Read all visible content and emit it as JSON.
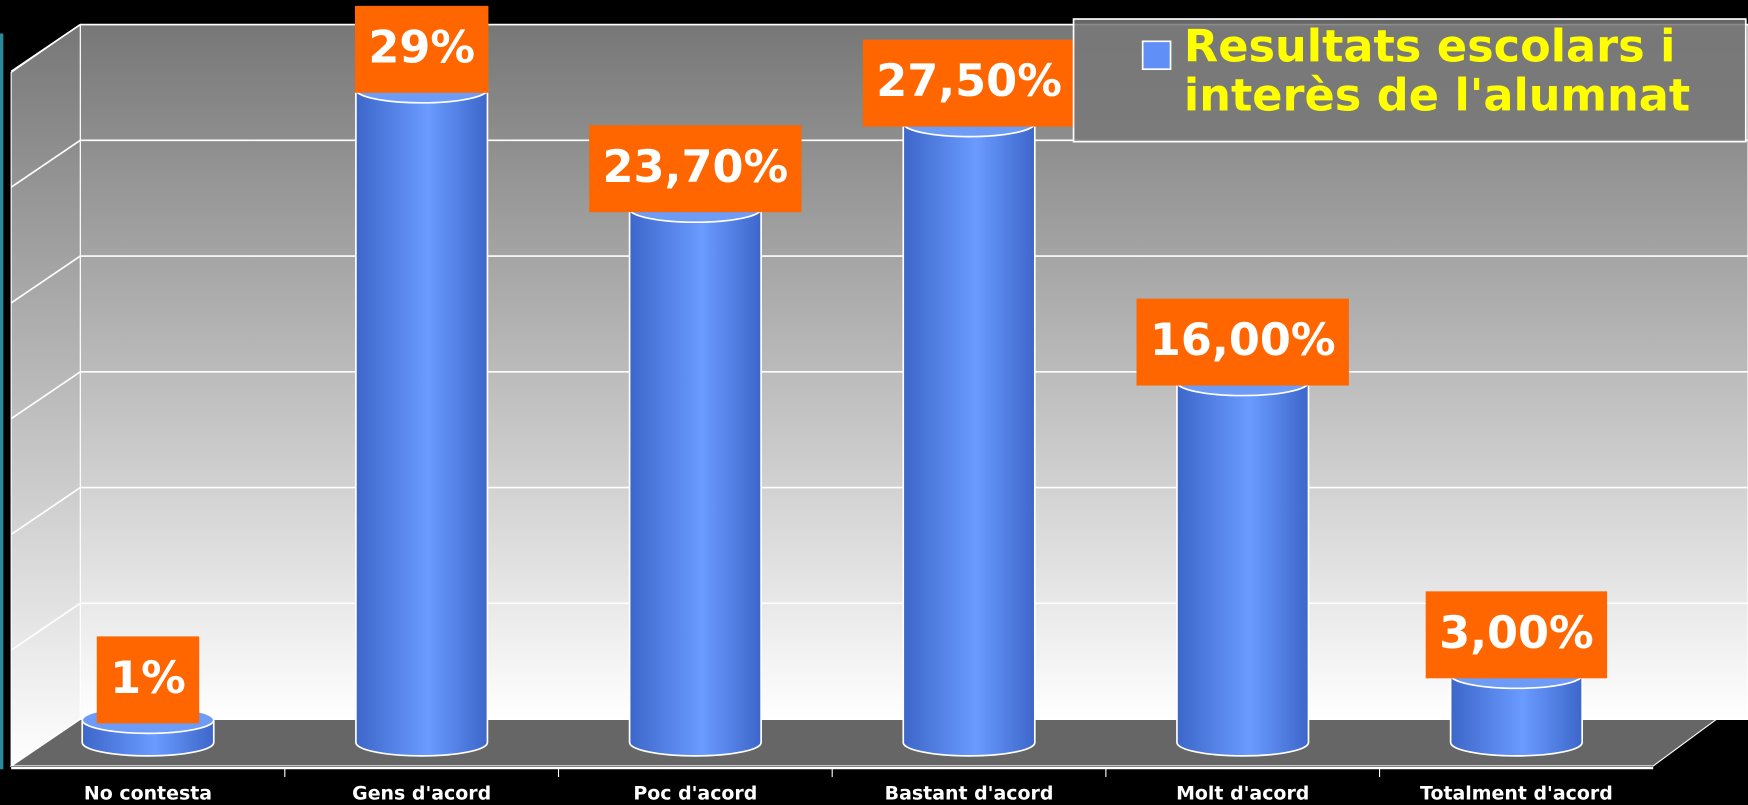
{
  "chart_data": {
    "type": "bar",
    "categories": [
      "No contesta",
      "Gens d'acord",
      "Poc d'acord",
      "Bastant d'acord",
      "Molt d'acord",
      "Totalment d'acord"
    ],
    "series": [
      {
        "name": "Resultats escolars i interès de l'alumnat",
        "color": "#5f8ff7",
        "values": [
          1,
          29,
          23.7,
          27.5,
          16,
          3
        ],
        "value_labels": [
          "1%",
          "29%",
          "23,70%",
          "27,50%",
          "16,00%",
          "3,00%"
        ]
      }
    ],
    "ylim": [
      0,
      30
    ],
    "yticks": [
      0,
      5,
      10,
      15,
      20,
      25,
      30
    ],
    "grid": true,
    "legend": "top-right"
  }
}
